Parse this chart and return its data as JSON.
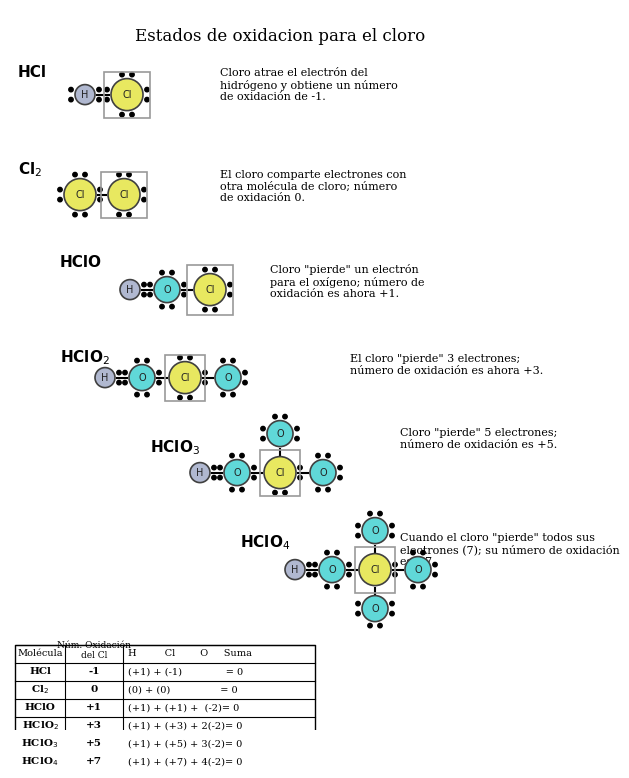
{
  "title": "Estados de oxidacion para el cloro",
  "bg_color": "#ffffff",
  "h_color": "#b0b8d0",
  "cl_color": "#e8e860",
  "o_color": "#60d8d8",
  "descriptions": [
    "Cloro atrae el electrón del\nhidrógeno y obtiene un número\nde oxidación de -1.",
    "El cloro comparte electrones con\notra molécula de cloro; número\nde oxidación 0.",
    "Cloro \"pierde\" un electrón\npara el oxígeno; número de\noxidación es ahora +1.",
    "El cloro \"pierde\" 3 electrones;\nnúmero de oxidación es ahora +3.",
    "Cloro \"pierde\" 5 electrones;\nnúmero de oxidación es +5.",
    "Cuando el cloro \"pierde\" todos sus\nelectrones (7); su número de oxidación\nes +7."
  ]
}
